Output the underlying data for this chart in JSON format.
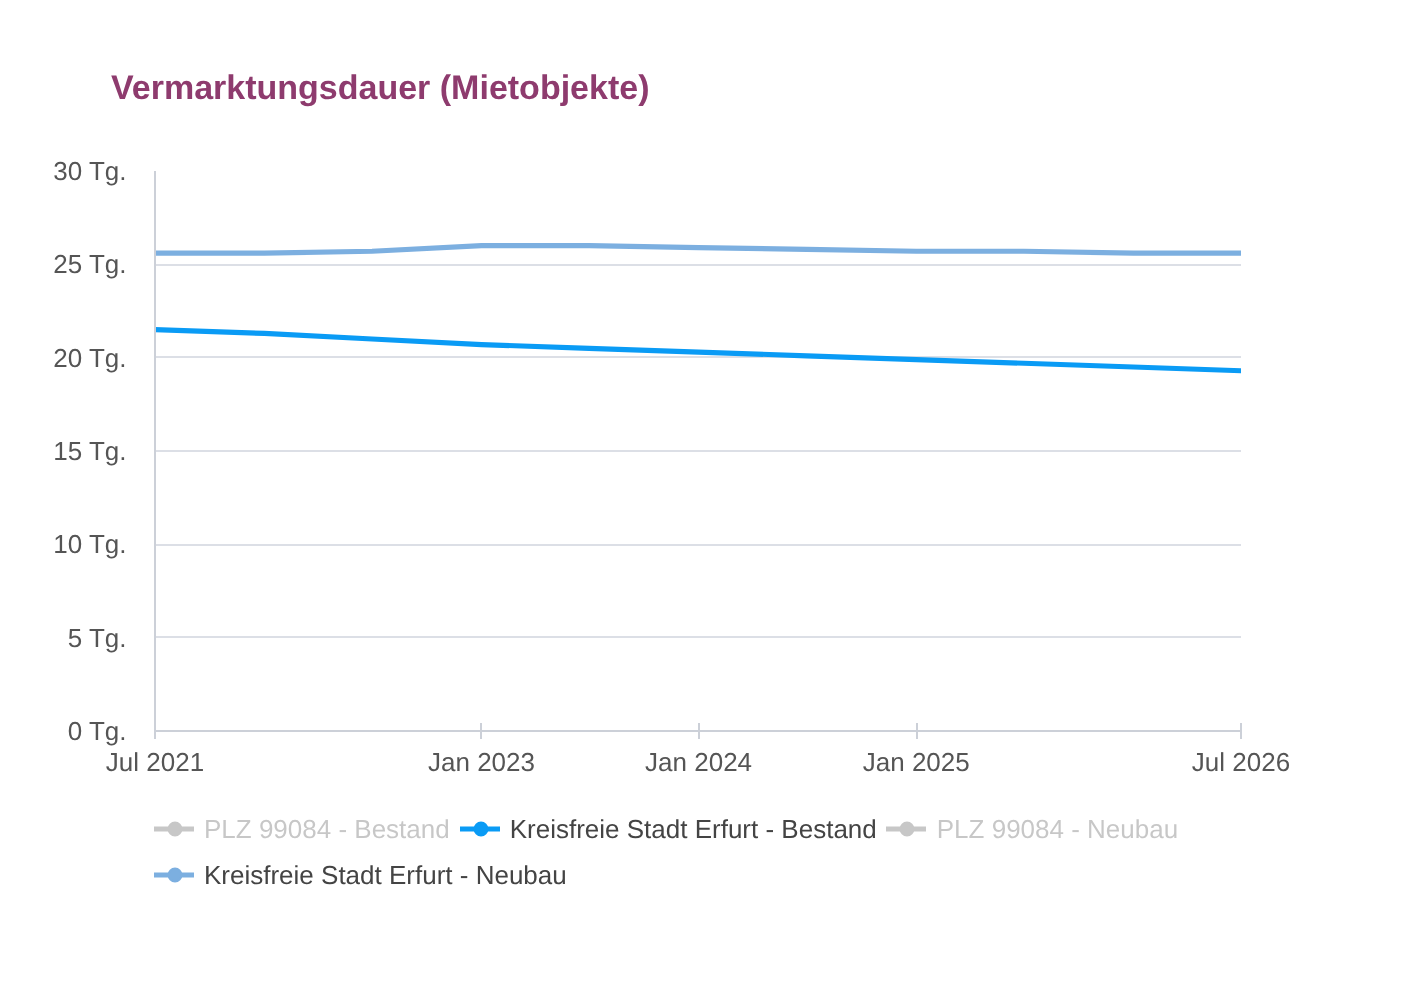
{
  "chart_data": {
    "type": "line",
    "title": "Vermarktungsdauer (Mietobjekte)",
    "x": [
      "2021-07",
      "2022-01",
      "2022-07",
      "2023-01",
      "2023-07",
      "2024-01",
      "2024-07",
      "2025-01",
      "2025-07",
      "2026-01",
      "2026-07"
    ],
    "series": [
      {
        "name": "PLZ 99084 - Bestand",
        "values": [
          null,
          null,
          null,
          null,
          null,
          null,
          null,
          null,
          null,
          null,
          null
        ]
      },
      {
        "name": "Kreisfreie Stadt Erfurt - Bestand",
        "color": "#0a9bf5",
        "values": [
          21.5,
          21.3,
          21.0,
          20.7,
          20.5,
          20.3,
          20.1,
          19.9,
          19.7,
          19.5,
          19.3
        ]
      },
      {
        "name": "PLZ 99084 - Neubau",
        "values": [
          null,
          null,
          null,
          null,
          null,
          null,
          null,
          null,
          null,
          null,
          null
        ]
      },
      {
        "name": "Kreisfreie Stadt Erfurt - Neubau",
        "color": "#7cafe0",
        "values": [
          25.6,
          25.6,
          25.7,
          26.0,
          26.0,
          25.9,
          25.8,
          25.7,
          25.7,
          25.6,
          25.6
        ]
      }
    ],
    "xlim": [
      "2021-07",
      "2026-07"
    ],
    "xticks": [
      {
        "value": "2021-07",
        "label": "Jul 2021"
      },
      {
        "value": "2023-01",
        "label": "Jan 2023"
      },
      {
        "value": "2024-01",
        "label": "Jan 2024"
      },
      {
        "value": "2025-01",
        "label": "Jan 2025"
      },
      {
        "value": "2026-07",
        "label": "Jul 2026"
      }
    ],
    "ylim": [
      0,
      30
    ],
    "yticks": [
      {
        "value": 0,
        "label": "0 Tg."
      },
      {
        "value": 5,
        "label": "5 Tg."
      },
      {
        "value": 10,
        "label": "10 Tg."
      },
      {
        "value": 15,
        "label": "15 Tg."
      },
      {
        "value": 20,
        "label": "20 Tg."
      },
      {
        "value": 25,
        "label": "25 Tg."
      },
      {
        "value": 30,
        "label": "30 Tg."
      }
    ],
    "grid": "y",
    "legend": "bottom",
    "line_style": "solid"
  }
}
